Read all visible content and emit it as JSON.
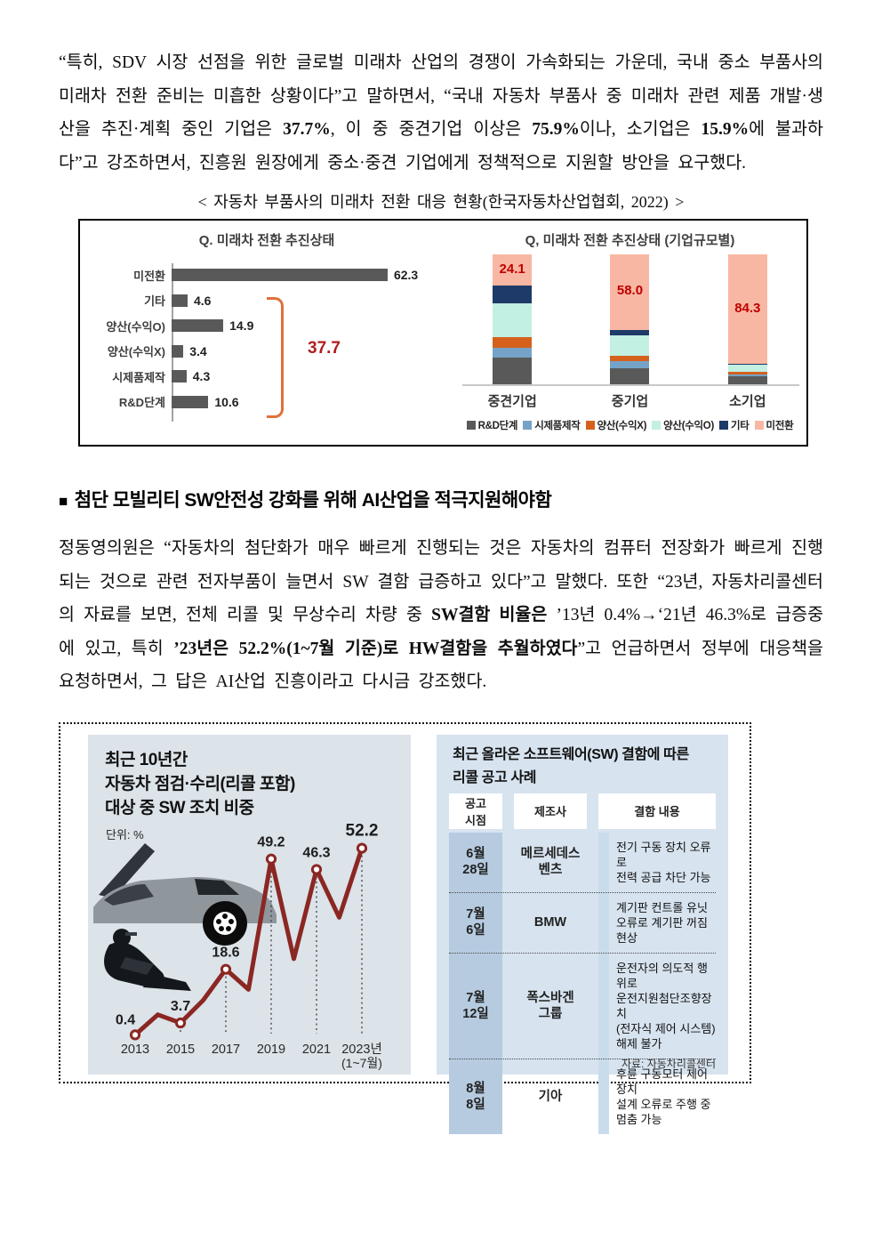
{
  "document": {
    "para1_runs": [
      {
        "text": "“특히, SDV 시장 선점을 위한 글로벌 미래차 산업의 경쟁이 가속화되는 가운데, 국내 중소 부품사의 미래차 전환 준비는 미흡한 상황이다”고 말하면서, “국내 자동차 부품사 중 미래차 관련 제품 개발·생산을 추진·계획 중인 기업은 ",
        "bold": false
      },
      {
        "text": "37.7%",
        "bold": true
      },
      {
        "text": ", 이 중 중견기업 이상은 ",
        "bold": false
      },
      {
        "text": "75.9%",
        "bold": true
      },
      {
        "text": "이나, 소기업은 ",
        "bold": false
      },
      {
        "text": "15.9%",
        "bold": true
      },
      {
        "text": "에 불과하다”고 강조하면서, 진흥원 원장에게 중소·중견 기업에게 정책적으로 지원할 방안을 요구했다.",
        "bold": false
      }
    ],
    "figure1_caption": "< 자동차 부품사의 미래차 전환 대응 현황(한국자동차산업협회, 2022) >",
    "heading": {
      "bullet": "■",
      "text": "첨단 모빌리티 SW안전성 강화를 위해 AI산업을 적극지원해야함"
    },
    "para2_runs": [
      {
        "text": "정동영의원은 “자동차의 첨단화가 매우 빠르게 진행되는 것은 자동차의 컴퓨터 전장화가 빠르게 진행되는 것으로 관련 전자부품이 늘면서 SW 결함 급증하고 있다”고 말했다. 또한 “23년, 자동차리콜센터의 자료를 보면, 전체 리콜 및 무상수리 차량 중 ",
        "bold": false
      },
      {
        "text": "SW결함 비율은",
        "bold": true
      },
      {
        "text": " ’13년 0.4%→‘21년 46.3%로 급증중에 있고, 특히 ",
        "bold": false
      },
      {
        "text": "’23년은 52.2%(1~7월 기준)로 HW결함을 추월하였다",
        "bold": true
      },
      {
        "text": "”고 언급하면서 정부에 대응책을 요청하면서, 그 답은 AI산업 진흥이라고 다시금 강조했다.",
        "bold": false
      }
    ]
  },
  "chart_data": [
    {
      "id": "transition-status",
      "type": "bar",
      "orientation": "horizontal",
      "title": "Q. 미래차 전환 추진상태",
      "categories": [
        "미전환",
        "기타",
        "양산(수익O)",
        "양산(수익X)",
        "시제품제작",
        "R&D단계"
      ],
      "values": [
        62.3,
        4.6,
        14.9,
        3.4,
        4.3,
        10.6
      ],
      "bar_color": "#595959",
      "group_annotation": {
        "label": "37.7",
        "covers": [
          "기타",
          "양산(수익O)",
          "양산(수익X)",
          "시제품제작",
          "R&D단계"
        ],
        "bracket_color": "#e0713a",
        "label_color": "#b01e1e"
      }
    },
    {
      "id": "transition-by-company-size",
      "type": "bar",
      "subtype": "stacked",
      "title": "Q, 미래차 전환 추진상태 (기업규모별)",
      "categories": [
        "중견기업",
        "중기업",
        "소기업"
      ],
      "series": [
        {
          "name": "R&D단계",
          "color": "#595959",
          "values": [
            20.9,
            12.6,
            6.0
          ]
        },
        {
          "name": "시제품제작",
          "color": "#74a3c7",
          "values": [
            7.3,
            5.3,
            1.6
          ]
        },
        {
          "name": "양산(수익X)",
          "color": "#d5611d",
          "values": [
            8.0,
            3.9,
            1.8
          ]
        },
        {
          "name": "양산(수익O)",
          "color": "#c2f0e2",
          "values": [
            26.0,
            15.6,
            5.7
          ]
        },
        {
          "name": "기타",
          "color": "#1e3a68",
          "values": [
            13.7,
            4.6,
            0.6
          ]
        },
        {
          "name": "미전환",
          "color": "#f8b7a2",
          "values": [
            24.1,
            58.0,
            84.3
          ]
        }
      ],
      "top_labels": [
        "24.1",
        "58.0",
        "84.3"
      ],
      "top_label_color": "#c00000",
      "ylim": [
        0,
        100
      ],
      "legend_position": "bottom"
    },
    {
      "id": "sw-action-ratio",
      "type": "line",
      "title": "최근 10년간\n자동차 점검·수리(리콜 포함)\n대상 중 SW 조치 비중",
      "unit": "단위: %",
      "x": [
        2013,
        2014,
        2015,
        2016,
        2017,
        2018,
        2019,
        2020,
        2021,
        2022,
        2023
      ],
      "values": [
        0.4,
        6.0,
        3.7,
        10.0,
        18.6,
        13.0,
        49.2,
        21.5,
        46.3,
        33.0,
        52.2
      ],
      "point_labels": [
        "0.4",
        null,
        "3.7",
        null,
        "18.6",
        null,
        "49.2",
        null,
        "46.3",
        null,
        "52.2"
      ],
      "x_tick_labels": [
        "2013",
        "2015",
        "2017",
        "2019",
        "2021",
        "2023년"
      ],
      "last_tick_sub": "(1~7월)",
      "line_color": "#8b2723"
    }
  ],
  "figure2": {
    "recall_table": {
      "title": "최근 올라온 소프트웨어(SW) 결함에 따른\n리콜 공고 사례",
      "headers": [
        "공고\n시점",
        "제조사",
        "결함 내용"
      ],
      "rows": [
        [
          "6월\n28일",
          "메르세데스\n벤츠",
          "전기 구동 장치 오류로\n전력 공급 차단 가능"
        ],
        [
          "7월\n6일",
          "BMW",
          "계기판 컨트롤 유닛\n오류로 계기판 꺼짐 현상"
        ],
        [
          "7월\n12일",
          "폭스바겐\n그룹",
          "운전자의 의도적 행위로\n운전지원첨단조향장치\n(전자식 제어 시스템)\n해제 불가"
        ],
        [
          "8월\n8일",
          "기아",
          "후륜 구동모터 제어장치\n설계 오류로 주행 중\n멈춤 가능"
        ]
      ],
      "source": "자료: 자동차리콜센터"
    }
  }
}
